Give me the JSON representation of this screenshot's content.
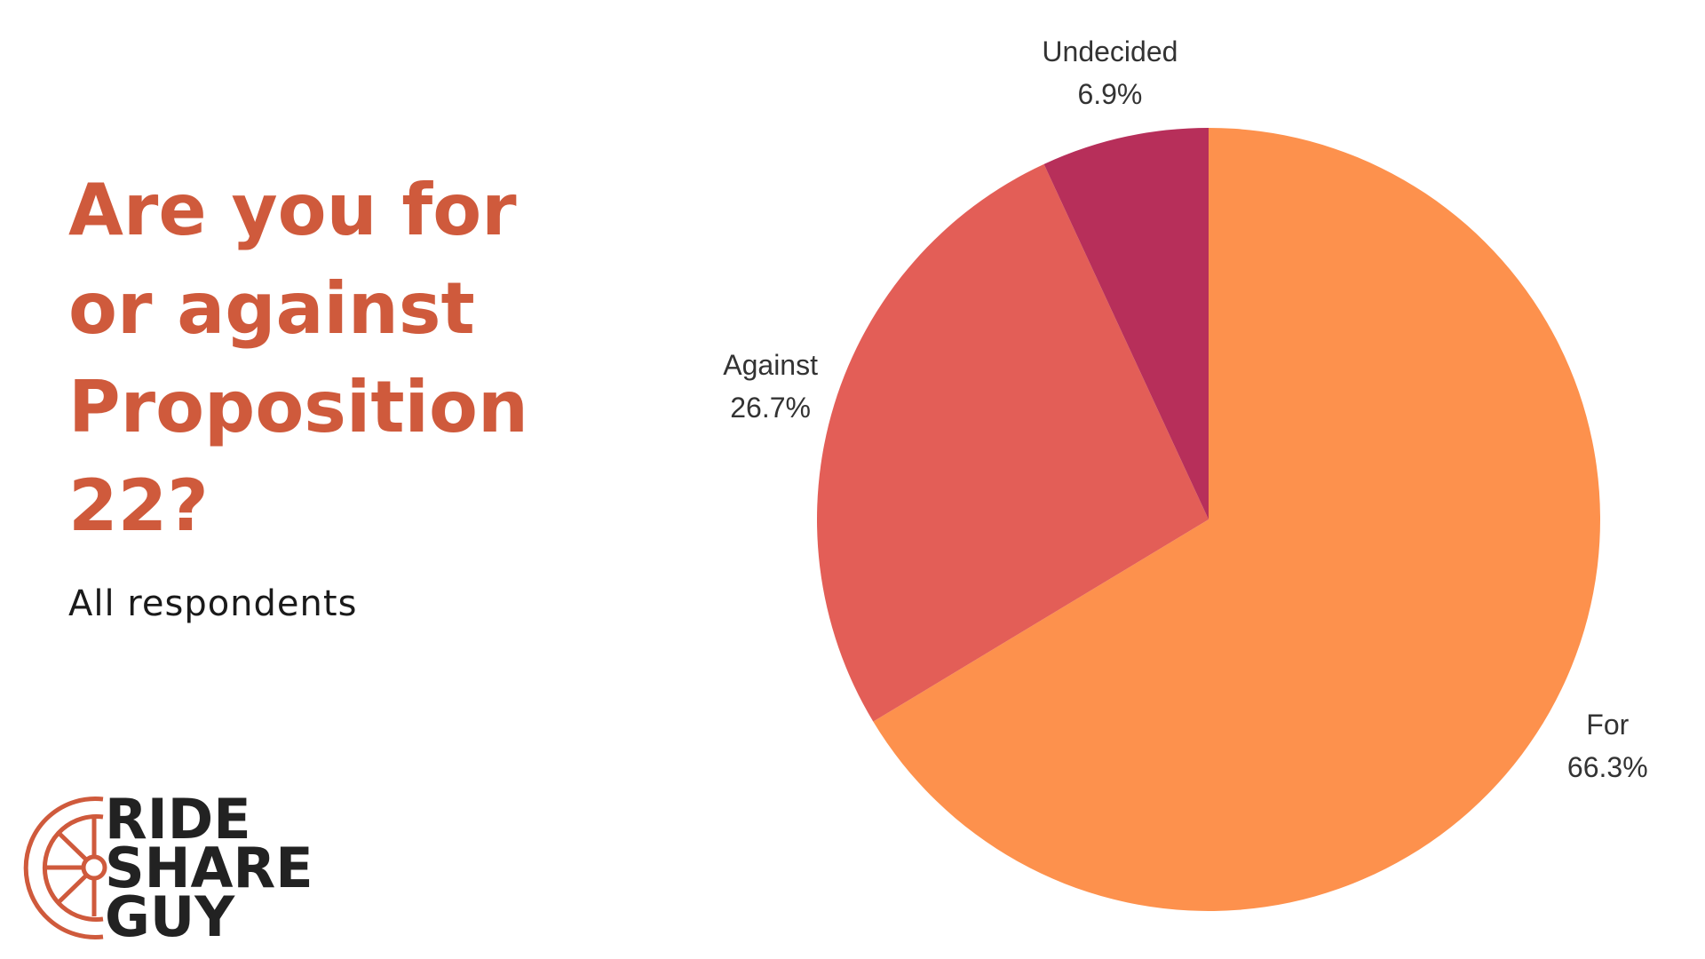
{
  "chart_data": {
    "type": "pie",
    "title": "Are you for or against Proposition 22?",
    "subtitle": "All respondents",
    "categories": [
      "For",
      "Against",
      "Undecided"
    ],
    "values": [
      66.3,
      26.7,
      6.9
    ],
    "value_labels": [
      "66.3%",
      "26.7%",
      "6.9%"
    ],
    "colors": [
      "#fd914d",
      "#e35e57",
      "#b72f5a"
    ]
  },
  "logo": {
    "lines": [
      "RIDE",
      "SHARE",
      "GUY"
    ]
  }
}
